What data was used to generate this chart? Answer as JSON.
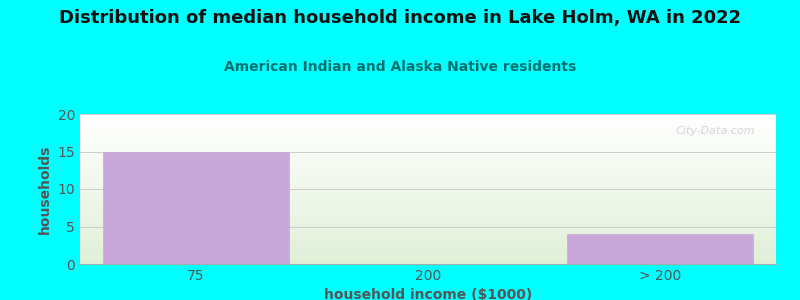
{
  "title": "Distribution of median household income in Lake Holm, WA in 2022",
  "subtitle": "American Indian and Alaska Native residents",
  "xlabel": "household income ($1000)",
  "ylabel": "households",
  "categories": [
    "75",
    "200",
    "> 200"
  ],
  "values": [
    15,
    0,
    4
  ],
  "bar_color": "#C8A8D8",
  "ylim": [
    0,
    20
  ],
  "yticks": [
    0,
    5,
    10,
    15,
    20
  ],
  "background_color": "#00FFFF",
  "title_color": "#111111",
  "subtitle_color": "#007070",
  "axis_label_color": "#555555",
  "tick_color": "#555555",
  "grid_color": "#CCCCCC",
  "watermark_text": "City-Data.com",
  "title_fontsize": 13,
  "subtitle_fontsize": 10,
  "label_fontsize": 10
}
